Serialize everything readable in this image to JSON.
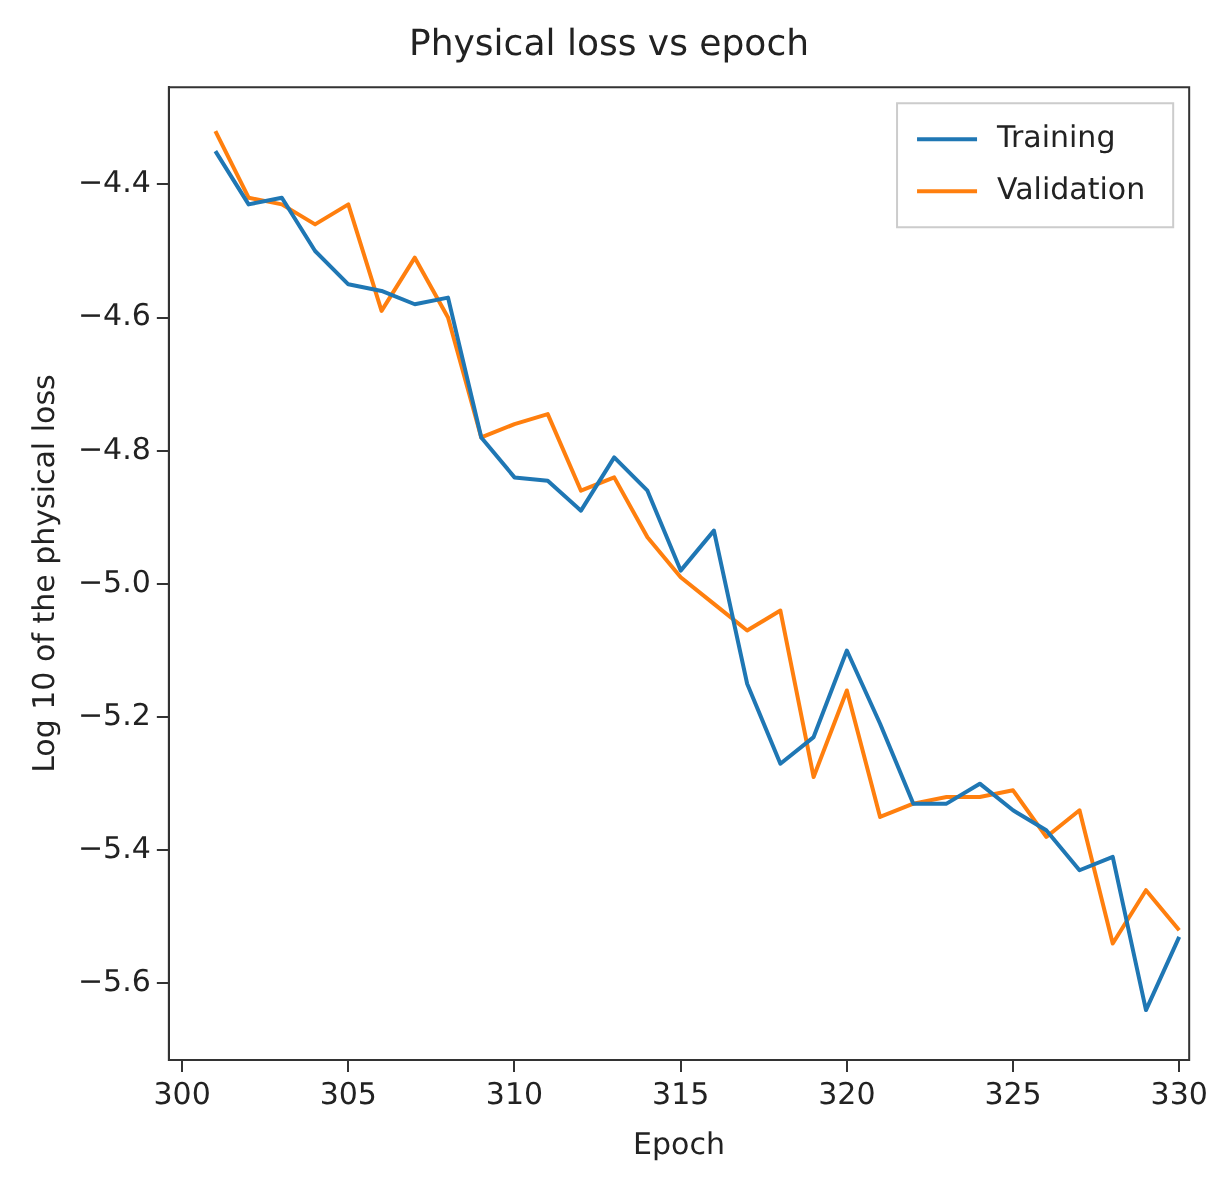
{
  "chart_data": {
    "type": "line",
    "title": "Physical loss vs epoch",
    "xlabel": "Epoch",
    "ylabel": "Log 10 of the physical loss",
    "x": [
      301,
      302,
      303,
      304,
      305,
      306,
      307,
      308,
      309,
      310,
      311,
      312,
      313,
      314,
      315,
      316,
      317,
      318,
      319,
      320,
      321,
      322,
      323,
      324,
      325,
      326,
      327,
      328,
      329,
      330
    ],
    "series": [
      {
        "name": "Training",
        "color": "#1f77b4",
        "values": [
          -4.35,
          -4.43,
          -4.42,
          -4.5,
          -4.55,
          -4.56,
          -4.58,
          -4.57,
          -4.78,
          -4.84,
          -4.845,
          -4.89,
          -4.81,
          -4.86,
          -4.98,
          -4.92,
          -5.15,
          -5.27,
          -5.23,
          -5.1,
          -5.21,
          -5.33,
          -5.33,
          -5.3,
          -5.34,
          -5.37,
          -5.43,
          -5.41,
          -5.64,
          -5.53
        ]
      },
      {
        "name": "Validation",
        "color": "#ff7f0e",
        "values": [
          -4.32,
          -4.42,
          -4.43,
          -4.46,
          -4.43,
          -4.59,
          -4.51,
          -4.6,
          -4.78,
          -4.76,
          -4.745,
          -4.86,
          -4.84,
          -4.93,
          -4.99,
          -5.03,
          -5.07,
          -5.04,
          -5.29,
          -5.16,
          -5.35,
          -5.33,
          -5.32,
          -5.32,
          -5.31,
          -5.38,
          -5.34,
          -5.54,
          -5.46,
          -5.52
        ]
      }
    ],
    "xlim": [
      299.6,
      330.3
    ],
    "xticks": [
      300,
      305,
      310,
      315,
      320,
      325,
      330
    ],
    "ylim": [
      -5.715,
      -4.254
    ],
    "yticks": [
      {
        "value": -4.4,
        "label": "−4.4"
      },
      {
        "value": -4.6,
        "label": "−4.6"
      },
      {
        "value": -4.8,
        "label": "−4.8"
      },
      {
        "value": -5.0,
        "label": "−5.0"
      },
      {
        "value": -5.2,
        "label": "−5.2"
      },
      {
        "value": -5.4,
        "label": "−5.4"
      },
      {
        "value": -5.6,
        "label": "−5.6"
      }
    ],
    "legend": "top right",
    "grid": false,
    "marker": "none",
    "line_style": "solid"
  }
}
